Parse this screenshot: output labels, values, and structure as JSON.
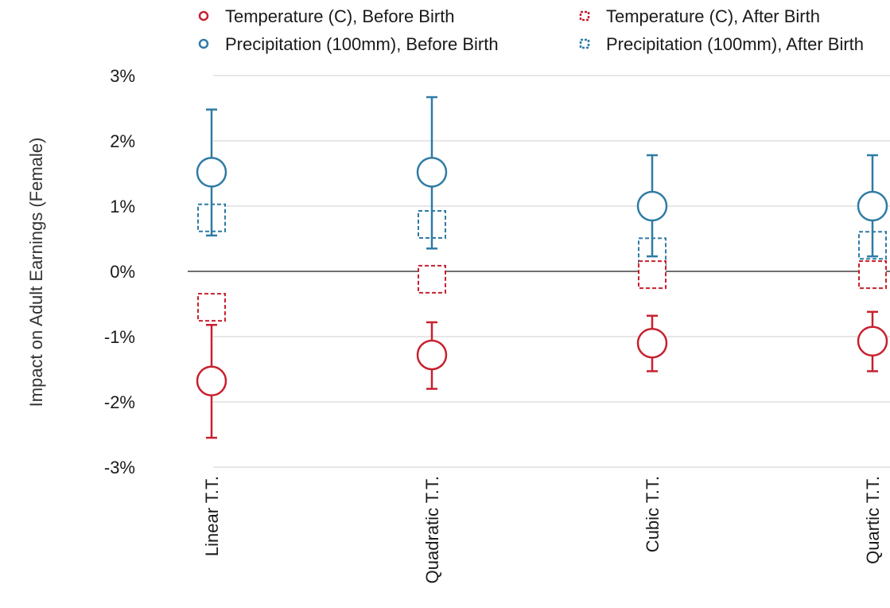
{
  "chart_data": {
    "type": "scatter",
    "title": "",
    "xlabel": "",
    "ylabel": "Impact on Adult Earnings (Female)",
    "ylim": [
      -3,
      3
    ],
    "yticks": [
      3,
      2,
      1,
      0,
      -1,
      -2,
      -3
    ],
    "ytick_labels": [
      "3%",
      "2%",
      "1%",
      "0%",
      "-1%",
      "-2%",
      "-3%"
    ],
    "categories": [
      "Linear T.T.",
      "Quadratic T.T.",
      "Cubic T.T.",
      "Quartic T.T."
    ],
    "grid": true,
    "legend_position": "top",
    "series": [
      {
        "name": "Temperature (C), Before Birth",
        "marker": "circle",
        "color": "#c8202f",
        "values": [
          -1.68,
          -1.28,
          -1.1,
          -1.07
        ],
        "ci_low": [
          -2.55,
          -1.8,
          -1.53,
          -1.53
        ],
        "ci_high": [
          -0.82,
          -0.78,
          -0.68,
          -0.62
        ]
      },
      {
        "name": "Precipitation (100mm), Before Birth",
        "marker": "circle",
        "color": "#2f7ba5",
        "values": [
          1.52,
          1.52,
          1.0,
          1.0
        ],
        "ci_low": [
          0.55,
          0.35,
          0.23,
          0.23
        ],
        "ci_high": [
          2.48,
          2.67,
          1.78,
          1.78
        ]
      },
      {
        "name": "Temperature (C), After Birth",
        "marker": "dashed-square",
        "color": "#c8202f",
        "values": [
          -0.55,
          -0.12,
          -0.05,
          -0.05
        ]
      },
      {
        "name": "Precipitation (100mm), After Birth",
        "marker": "dashed-square",
        "color": "#2f7ba5",
        "values": [
          0.82,
          0.72,
          0.3,
          0.4
        ]
      }
    ],
    "legend": [
      {
        "label": "Temperature (C), Before Birth",
        "marker": "circle",
        "color": "#c8202f"
      },
      {
        "label": "Temperature (C), After Birth",
        "marker": "dashed-square",
        "color": "#c8202f"
      },
      {
        "label": "Precipitation (100mm), Before Birth",
        "marker": "circle",
        "color": "#2f7ba5"
      },
      {
        "label": "Precipitation (100mm), After Birth",
        "marker": "dashed-square",
        "color": "#2f7ba5"
      }
    ]
  }
}
